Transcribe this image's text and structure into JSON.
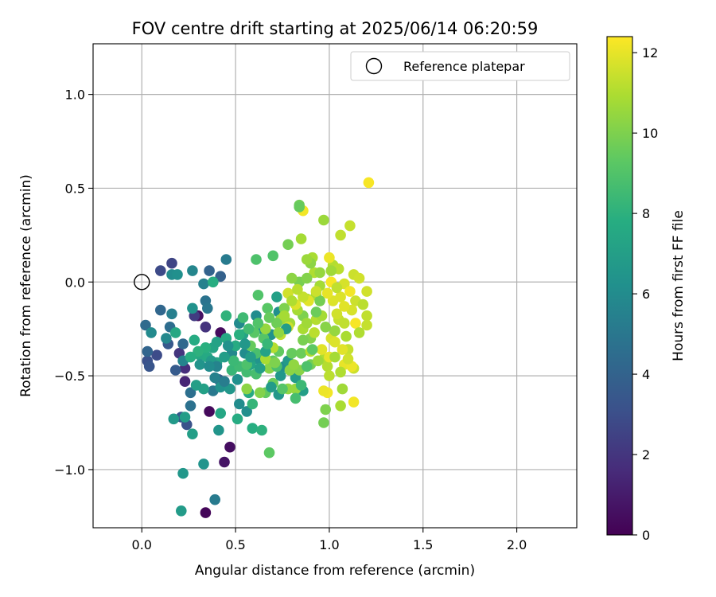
{
  "chart_data": {
    "type": "scatter",
    "title": "FOV centre drift starting at 2025/06/14 06:20:59",
    "xlabel": "Angular distance from reference (arcmin)",
    "ylabel": "Rotation from reference (arcmin)",
    "xlim": [
      -0.26,
      2.32
    ],
    "ylim": [
      -1.31,
      1.27
    ],
    "xticks": [
      0.0,
      0.5,
      1.0,
      1.5,
      2.0
    ],
    "xtick_labels": [
      "0.0",
      "0.5",
      "1.0",
      "1.5",
      "2.0"
    ],
    "yticks": [
      -1.0,
      -0.5,
      0.0,
      0.5,
      1.0
    ],
    "ytick_labels": [
      "−1.0",
      "−0.5",
      "0.0",
      "0.5",
      "1.0"
    ],
    "grid": true,
    "legend": {
      "placement": "top-right",
      "entries": [
        "Reference platepar"
      ]
    },
    "reference_point": {
      "x": 0.0,
      "y": 0.0
    },
    "colorbar": {
      "label": "Hours from first FF file",
      "colormap": "viridis",
      "range": [
        0,
        12.4
      ],
      "ticks": [
        0,
        2,
        4,
        6,
        8,
        10,
        12
      ],
      "tick_labels": [
        "0",
        "2",
        "4",
        "6",
        "8",
        "10",
        "12"
      ]
    },
    "point_columns": [
      "x",
      "y",
      "hours"
    ],
    "points": [
      [
        0.34,
        -1.23,
        0.2
      ],
      [
        0.36,
        -0.69,
        0.3
      ],
      [
        0.42,
        -0.27,
        0.4
      ],
      [
        0.3,
        -0.18,
        0.6
      ],
      [
        0.47,
        -0.88,
        0.5
      ],
      [
        0.44,
        -0.96,
        0.7
      ],
      [
        0.1,
        0.06,
        2.8
      ],
      [
        0.16,
        0.1,
        2.6
      ],
      [
        0.23,
        -0.53,
        1.4
      ],
      [
        0.23,
        -0.46,
        1.7
      ],
      [
        0.3,
        -0.38,
        1.8
      ],
      [
        0.2,
        -0.38,
        2.0
      ],
      [
        0.34,
        -0.24,
        1.9
      ],
      [
        0.28,
        -0.18,
        2.2
      ],
      [
        0.08,
        -0.39,
        2.9
      ],
      [
        0.03,
        -0.42,
        3.1
      ],
      [
        0.04,
        -0.45,
        3.3
      ],
      [
        0.14,
        -0.33,
        3.5
      ],
      [
        0.18,
        -0.47,
        3.6
      ],
      [
        0.41,
        -0.52,
        3.7
      ],
      [
        0.24,
        -0.76,
        3.2
      ],
      [
        0.21,
        -0.72,
        3.4
      ],
      [
        0.42,
        0.03,
        3.9
      ],
      [
        0.36,
        0.06,
        4.0
      ],
      [
        0.1,
        -0.15,
        4.2
      ],
      [
        0.02,
        -0.23,
        4.4
      ],
      [
        0.03,
        -0.37,
        4.1
      ],
      [
        0.15,
        -0.24,
        4.5
      ],
      [
        0.22,
        -0.33,
        4.3
      ],
      [
        0.26,
        -0.59,
        4.6
      ],
      [
        0.34,
        -0.1,
        4.8
      ],
      [
        0.26,
        -0.66,
        4.7
      ],
      [
        0.35,
        -0.14,
        5.0
      ],
      [
        0.38,
        -0.58,
        5.1
      ],
      [
        0.39,
        -1.16,
        5.2
      ],
      [
        0.45,
        0.12,
        5.2
      ],
      [
        0.33,
        -0.01,
        5.5
      ],
      [
        0.27,
        0.06,
        5.7
      ],
      [
        0.22,
        -0.42,
        5.6
      ],
      [
        0.13,
        -0.3,
        5.8
      ],
      [
        0.16,
        -0.17,
        5.4
      ],
      [
        0.05,
        -0.27,
        5.9
      ],
      [
        0.16,
        0.04,
        6.0
      ],
      [
        0.19,
        0.04,
        6.2
      ],
      [
        0.27,
        -0.14,
        6.3
      ],
      [
        0.33,
        -0.97,
        6.4
      ],
      [
        0.22,
        -1.02,
        6.6
      ],
      [
        0.21,
        -1.22,
        6.8
      ],
      [
        0.17,
        -0.73,
        6.7
      ],
      [
        0.23,
        -0.72,
        6.9
      ],
      [
        0.27,
        -0.81,
        7.0
      ],
      [
        0.33,
        -0.57,
        7.1
      ],
      [
        0.41,
        -0.79,
        6.5
      ],
      [
        0.42,
        -0.56,
        6.3
      ],
      [
        0.47,
        -0.57,
        6.6
      ],
      [
        0.51,
        -0.52,
        6.2
      ],
      [
        0.52,
        -0.65,
        6.0
      ],
      [
        0.56,
        -0.69,
        6.1
      ],
      [
        0.52,
        -0.22,
        5.9
      ],
      [
        0.48,
        -0.38,
        5.8
      ],
      [
        0.55,
        -0.38,
        6.0
      ],
      [
        0.62,
        -0.41,
        6.4
      ],
      [
        0.73,
        -0.16,
        6.2
      ],
      [
        0.61,
        -0.18,
        6.0
      ],
      [
        0.64,
        -0.25,
        6.5
      ],
      [
        0.69,
        -0.28,
        6.3
      ],
      [
        0.76,
        -0.45,
        6.1
      ],
      [
        0.78,
        -0.42,
        6.7
      ],
      [
        0.73,
        -0.6,
        6.6
      ],
      [
        0.82,
        -0.51,
        6.8
      ],
      [
        0.86,
        -0.58,
        7.0
      ],
      [
        0.54,
        -0.28,
        7.2
      ],
      [
        0.38,
        -0.35,
        7.3
      ],
      [
        0.4,
        -0.43,
        7.4
      ],
      [
        0.31,
        -0.39,
        7.5
      ],
      [
        0.35,
        -0.4,
        7.6
      ],
      [
        0.28,
        -0.31,
        7.7
      ],
      [
        0.18,
        -0.27,
        7.5
      ],
      [
        0.38,
        0.0,
        7.8
      ],
      [
        0.29,
        -0.55,
        7.0
      ],
      [
        0.42,
        -0.7,
        7.4
      ],
      [
        0.57,
        -0.59,
        7.6
      ],
      [
        0.51,
        -0.73,
        7.7
      ],
      [
        0.59,
        -0.78,
        7.8
      ],
      [
        0.64,
        -0.79,
        8.0
      ],
      [
        0.59,
        -0.65,
        8.2
      ],
      [
        0.48,
        -0.47,
        8.3
      ],
      [
        0.52,
        -0.45,
        8.5
      ],
      [
        0.56,
        -0.48,
        8.6
      ],
      [
        0.61,
        -0.49,
        8.7
      ],
      [
        0.61,
        -0.38,
        8.8
      ],
      [
        0.54,
        -0.19,
        8.5
      ],
      [
        0.61,
        0.12,
        8.9
      ],
      [
        0.7,
        0.14,
        9.0
      ],
      [
        0.62,
        -0.07,
        9.0
      ],
      [
        0.67,
        -0.14,
        9.2
      ],
      [
        0.65,
        -0.3,
        9.1
      ],
      [
        0.7,
        -0.42,
        9.3
      ],
      [
        0.73,
        -0.37,
        9.4
      ],
      [
        0.8,
        -0.38,
        9.5
      ],
      [
        0.85,
        -0.38,
        9.6
      ],
      [
        0.66,
        -0.59,
        9.4
      ],
      [
        0.68,
        -0.91,
        9.3
      ],
      [
        0.84,
        0.41,
        9.7
      ],
      [
        0.78,
        0.2,
        9.8
      ],
      [
        0.84,
        0.0,
        9.9
      ],
      [
        0.86,
        -0.18,
        10.0
      ],
      [
        0.9,
        -0.3,
        10.1
      ],
      [
        0.97,
        -0.75,
        9.8
      ],
      [
        0.98,
        -0.68,
        10.0
      ],
      [
        0.84,
        -0.47,
        10.2
      ],
      [
        0.79,
        -0.47,
        10.3
      ],
      [
        0.81,
        -0.44,
        10.4
      ],
      [
        0.68,
        -0.46,
        10.2
      ],
      [
        0.78,
        -0.57,
        10.4
      ],
      [
        0.82,
        -0.57,
        10.5
      ],
      [
        0.56,
        -0.57,
        10.3
      ],
      [
        0.66,
        -0.25,
        10.5
      ],
      [
        0.74,
        -0.2,
        10.6
      ],
      [
        0.79,
        -0.22,
        10.7
      ],
      [
        0.83,
        -0.15,
        10.8
      ],
      [
        0.86,
        -0.25,
        10.9
      ],
      [
        0.9,
        -0.37,
        11.0
      ],
      [
        0.93,
        -0.2,
        11.1
      ],
      [
        0.88,
        -0.09,
        11.0
      ],
      [
        0.93,
        -0.07,
        10.9
      ],
      [
        0.96,
        -0.18,
        10.8
      ],
      [
        0.97,
        -0.41,
        11.0
      ],
      [
        0.99,
        -0.45,
        11.1
      ],
      [
        1.0,
        -0.5,
        11.2
      ],
      [
        1.06,
        -0.66,
        10.9
      ],
      [
        1.07,
        -0.57,
        10.7
      ],
      [
        0.85,
        0.23,
        10.8
      ],
      [
        0.91,
        0.13,
        10.9
      ],
      [
        0.92,
        0.05,
        11.0
      ],
      [
        0.97,
        0.33,
        10.6
      ],
      [
        1.02,
        0.09,
        11.1
      ],
      [
        1.05,
        0.07,
        11.2
      ],
      [
        1.06,
        0.25,
        11.3
      ],
      [
        1.11,
        0.3,
        11.4
      ],
      [
        1.13,
        0.04,
        11.5
      ],
      [
        1.16,
        0.02,
        11.6
      ],
      [
        1.14,
        -0.1,
        11.5
      ],
      [
        1.05,
        -0.2,
        11.4
      ],
      [
        1.08,
        -0.22,
        11.3
      ],
      [
        1.1,
        -0.36,
        11.4
      ],
      [
        1.13,
        -0.46,
        11.5
      ],
      [
        1.2,
        -0.05,
        11.6
      ],
      [
        1.2,
        -0.18,
        11.3
      ],
      [
        1.2,
        -0.23,
        11.4
      ],
      [
        1.08,
        -0.01,
        11.7
      ],
      [
        1.02,
        -0.1,
        11.8
      ],
      [
        1.04,
        -0.17,
        11.6
      ],
      [
        1.01,
        -0.3,
        11.7
      ],
      [
        1.03,
        -0.32,
        11.8
      ],
      [
        1.07,
        -0.36,
        11.9
      ],
      [
        1.08,
        -0.44,
        12.0
      ],
      [
        1.12,
        -0.45,
        12.1
      ],
      [
        1.13,
        -0.64,
        12.2
      ],
      [
        1.0,
        -0.4,
        12.0
      ],
      [
        0.99,
        -0.59,
        12.2
      ],
      [
        0.96,
        -0.36,
        11.9
      ],
      [
        0.97,
        -0.58,
        12.1
      ],
      [
        1.0,
        0.13,
        12.1
      ],
      [
        0.86,
        0.38,
        12.2
      ],
      [
        1.21,
        0.53,
        12.3
      ],
      [
        1.14,
        -0.22,
        12.3
      ],
      [
        1.11,
        -0.05,
        12.2
      ],
      [
        0.99,
        -0.06,
        12.0
      ],
      [
        1.01,
        0.0,
        12.3
      ],
      [
        0.95,
        -0.1,
        12.1
      ],
      [
        0.89,
        -0.1,
        11.9
      ],
      [
        0.82,
        -0.12,
        11.8
      ],
      [
        0.78,
        -0.06,
        11.6
      ],
      [
        0.78,
        -0.24,
        11.5
      ],
      [
        0.74,
        -0.28,
        11.3
      ],
      [
        0.7,
        -0.35,
        11.1
      ],
      [
        0.66,
        -0.41,
        10.9
      ],
      [
        0.63,
        -0.59,
        10.1
      ],
      [
        0.7,
        -0.54,
        9.6
      ],
      [
        0.58,
        -0.34,
        9.5
      ],
      [
        0.6,
        -0.27,
        9.2
      ],
      [
        0.57,
        -0.25,
        8.6
      ],
      [
        0.52,
        -0.28,
        7.9
      ],
      [
        0.5,
        -0.34,
        7.7
      ],
      [
        0.45,
        -0.3,
        7.6
      ],
      [
        0.58,
        -0.44,
        7.3
      ],
      [
        0.63,
        -0.46,
        7.0
      ],
      [
        0.69,
        -0.56,
        6.8
      ],
      [
        0.74,
        -0.5,
        6.6
      ],
      [
        0.77,
        -0.25,
        6.9
      ],
      [
        0.72,
        -0.08,
        7.1
      ],
      [
        0.86,
        -0.31,
        9.9
      ],
      [
        0.9,
        -0.44,
        9.8
      ],
      [
        0.94,
        -0.42,
        10.6
      ],
      [
        0.88,
        -0.22,
        10.7
      ],
      [
        0.92,
        -0.27,
        11.2
      ],
      [
        0.95,
        -0.02,
        10.8
      ],
      [
        1.03,
        -0.26,
        10.5
      ],
      [
        1.09,
        -0.29,
        10.9
      ],
      [
        1.16,
        -0.27,
        11.0
      ],
      [
        1.18,
        -0.12,
        11.2
      ],
      [
        1.12,
        -0.15,
        11.7
      ],
      [
        1.06,
        -0.08,
        11.8
      ],
      [
        0.8,
        0.02,
        10.3
      ],
      [
        0.76,
        -0.14,
        10.0
      ],
      [
        0.72,
        -0.22,
        9.7
      ],
      [
        0.68,
        -0.19,
        9.5
      ],
      [
        0.62,
        -0.22,
        9.0
      ],
      [
        0.56,
        -0.44,
        8.9
      ],
      [
        0.49,
        -0.42,
        8.4
      ],
      [
        0.45,
        -0.18,
        8.1
      ],
      [
        0.4,
        -0.32,
        7.2
      ],
      [
        0.44,
        -0.4,
        6.9
      ],
      [
        0.37,
        -0.42,
        6.8
      ],
      [
        0.34,
        -0.35,
        7.9
      ],
      [
        0.3,
        -0.37,
        8.0
      ],
      [
        0.26,
        -0.4,
        7.8
      ],
      [
        0.31,
        -0.44,
        6.4
      ],
      [
        0.39,
        -0.51,
        5.5
      ],
      [
        0.44,
        -0.53,
        5.3
      ],
      [
        0.4,
        -0.45,
        5.6
      ],
      [
        0.36,
        -0.45,
        6.0
      ],
      [
        0.46,
        -0.34,
        6.3
      ],
      [
        0.55,
        -0.33,
        6.6
      ],
      [
        0.58,
        -0.4,
        6.9
      ],
      [
        0.66,
        -0.37,
        7.2
      ],
      [
        0.67,
        -0.33,
        8.3
      ],
      [
        0.72,
        -0.45,
        8.8
      ],
      [
        0.75,
        -0.57,
        9.1
      ],
      [
        0.82,
        -0.62,
        8.7
      ],
      [
        0.85,
        -0.55,
        8.4
      ],
      [
        0.88,
        -0.45,
        8.9
      ],
      [
        0.91,
        -0.36,
        9.3
      ],
      [
        0.93,
        -0.16,
        9.6
      ],
      [
        0.95,
        -0.1,
        9.8
      ],
      [
        0.98,
        -0.24,
        10.2
      ],
      [
        1.03,
        -0.4,
        10.8
      ],
      [
        1.06,
        -0.48,
        11.0
      ],
      [
        1.1,
        -0.41,
        11.6
      ],
      [
        0.86,
        -0.08,
        11.4
      ],
      [
        0.83,
        -0.04,
        11.2
      ],
      [
        0.8,
        -0.1,
        11.0
      ],
      [
        0.76,
        -0.18,
        10.8
      ],
      [
        0.73,
        -0.27,
        10.4
      ],
      [
        0.71,
        -0.43,
        10.0
      ],
      [
        0.95,
        0.05,
        10.5
      ],
      [
        0.88,
        0.02,
        10.1
      ],
      [
        0.9,
        0.1,
        10.3
      ],
      [
        1.01,
        0.06,
        10.7
      ],
      [
        1.04,
        -0.03,
        11.3
      ],
      [
        1.08,
        -0.13,
        11.9
      ],
      [
        0.84,
        0.4,
        9.5
      ],
      [
        0.88,
        0.12,
        10.6
      ],
      [
        0.93,
        -0.05,
        11.5
      ]
    ]
  }
}
